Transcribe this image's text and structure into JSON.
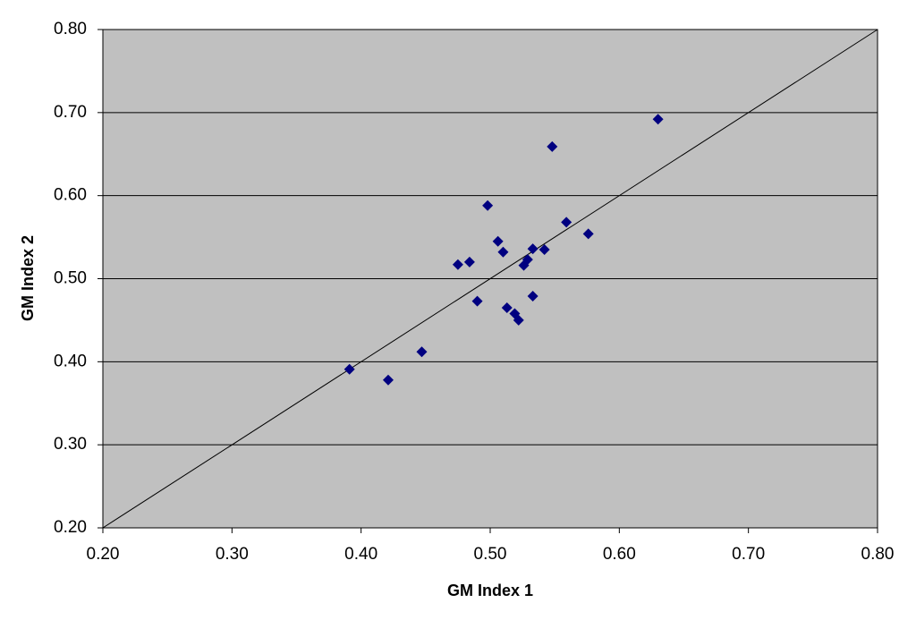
{
  "chart_data": {
    "type": "scatter",
    "x_label": "GM Index 1",
    "y_label": "GM Index 2",
    "x": [
      0.391,
      0.421,
      0.447,
      0.475,
      0.484,
      0.49,
      0.498,
      0.506,
      0.51,
      0.513,
      0.519,
      0.522,
      0.526,
      0.529,
      0.533,
      0.533,
      0.542,
      0.548,
      0.559,
      0.576,
      0.63
    ],
    "values": [
      0.391,
      0.378,
      0.412,
      0.517,
      0.52,
      0.473,
      0.588,
      0.545,
      0.532,
      0.465,
      0.458,
      0.45,
      0.516,
      0.523,
      0.536,
      0.479,
      0.535,
      0.659,
      0.568,
      0.554,
      0.692
    ],
    "color": "#000080",
    "plot_background": "#c0c0c0",
    "xlim": [
      0.2,
      0.8
    ],
    "ylim": [
      0.2,
      0.8
    ],
    "xticks": [
      {
        "value": 0.2,
        "label": "0.20"
      },
      {
        "value": 0.3,
        "label": "0.30"
      },
      {
        "value": 0.4,
        "label": "0.40"
      },
      {
        "value": 0.5,
        "label": "0.50"
      },
      {
        "value": 0.6,
        "label": "0.60"
      },
      {
        "value": 0.7,
        "label": "0.70"
      },
      {
        "value": 0.8,
        "label": "0.80"
      }
    ],
    "yticks": [
      {
        "value": 0.2,
        "label": "0.20"
      },
      {
        "value": 0.3,
        "label": "0.30"
      },
      {
        "value": 0.4,
        "label": "0.40"
      },
      {
        "value": 0.5,
        "label": "0.50"
      },
      {
        "value": 0.6,
        "label": "0.60"
      },
      {
        "value": 0.7,
        "label": "0.70"
      },
      {
        "value": 0.8,
        "label": "0.80"
      }
    ],
    "grid": true,
    "identity_line": true
  }
}
